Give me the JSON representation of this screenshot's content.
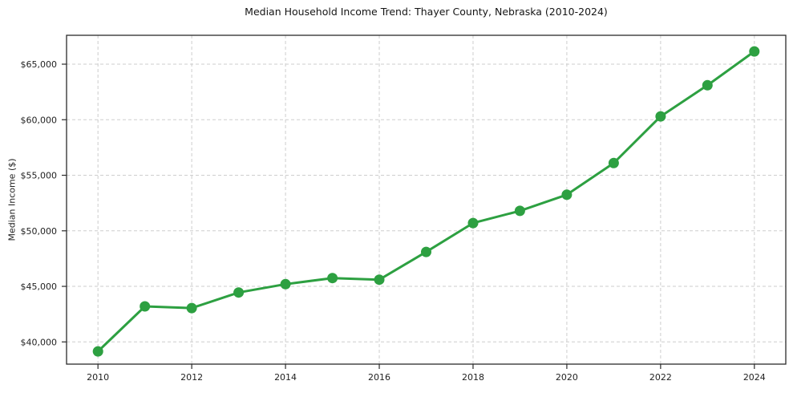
{
  "chart_data": {
    "type": "line",
    "title": "Median Household Income Trend: Thayer County, Nebraska (2010-2024)",
    "xlabel": "",
    "ylabel": "Median Income ($)",
    "x": [
      2010,
      2011,
      2012,
      2013,
      2014,
      2015,
      2016,
      2017,
      2018,
      2019,
      2020,
      2021,
      2022,
      2023,
      2024
    ],
    "values": [
      39150,
      43200,
      43050,
      44450,
      45200,
      45750,
      45600,
      48100,
      50700,
      51800,
      53250,
      56100,
      60300,
      63100,
      66150
    ],
    "x_ticks": [
      2010,
      2012,
      2014,
      2016,
      2018,
      2020,
      2022,
      2024
    ],
    "x_tick_labels": [
      "2010",
      "2012",
      "2014",
      "2016",
      "2018",
      "2020",
      "2022",
      "2024"
    ],
    "y_ticks": [
      40000,
      45000,
      50000,
      55000,
      60000,
      65000
    ],
    "y_tick_labels": [
      "$40,000",
      "$45,000",
      "$50,000",
      "$55,000",
      "$60,000",
      "$65,000"
    ],
    "xlim": [
      2009.33,
      2024.67
    ],
    "ylim": [
      38000,
      67600
    ],
    "grid": true,
    "grid_style": "dashed",
    "legend_position": "none",
    "line_color": "#2da041",
    "grid_color": "#cdcdcd",
    "axis_color": "#2b2b2b",
    "tick_text_color": "#222222",
    "marker": "circle"
  }
}
